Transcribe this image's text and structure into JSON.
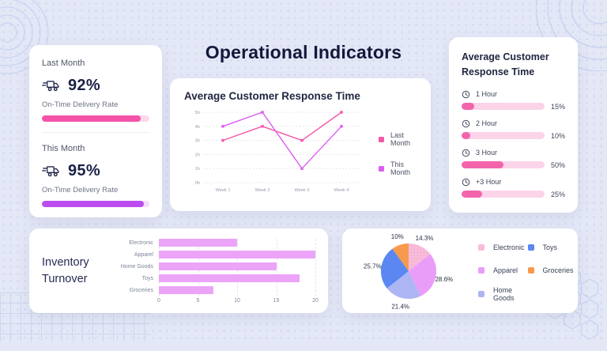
{
  "page_title": "Operational Indicators",
  "delivery_card": {
    "sections": [
      {
        "period": "Last Month",
        "value": "92%",
        "label": "On-Time Delivery Rate",
        "percent": 92,
        "fill": "#f553a8",
        "track": "#fbd9ec"
      },
      {
        "period": "This Month",
        "value": "95%",
        "label": "On-Time Delivery Rate",
        "percent": 95,
        "fill": "#bb4df0",
        "track": "#f3defb"
      }
    ]
  },
  "response_chart_card": {
    "title": "Average Customer Response Time"
  },
  "response_breakdown_card": {
    "title": "Average Customer Response Time",
    "bar_fill": "#f364ad",
    "bar_track": "#fbd4e9",
    "rows": [
      {
        "label": "1 Hour",
        "value": "15%",
        "percent": 15
      },
      {
        "label": "2 Hour",
        "value": "10%",
        "percent": 10
      },
      {
        "label": "3 Hour",
        "value": "50%",
        "percent": 50
      },
      {
        "label": "+3 Hour",
        "value": "25%",
        "percent": 25
      }
    ]
  },
  "inventory_card": {
    "title": "Inventory Turnover"
  },
  "chart_data": [
    {
      "type": "line",
      "title": "Average Customer Response Time",
      "x": [
        "Week 1",
        "Week 2",
        "Week 3",
        "Week 4"
      ],
      "yticks": [
        "0h",
        "1h",
        "2h",
        "3h",
        "4h",
        "5h"
      ],
      "ylim": [
        0,
        5
      ],
      "grid": "horizontal-dotted",
      "legend_position": "right",
      "series": [
        {
          "name": "Last Month",
          "values": [
            3,
            4,
            3,
            5
          ],
          "color": "#f558a7"
        },
        {
          "name": "This Month",
          "values": [
            4,
            5,
            1,
            4
          ],
          "color": "#dd5cf2"
        }
      ]
    },
    {
      "type": "bar",
      "title": "Inventory Turnover",
      "orientation": "horizontal",
      "categories": [
        "Electronic",
        "Apparel",
        "Home Goods",
        "Toys",
        "Groceries"
      ],
      "values": [
        10,
        20,
        15,
        18,
        7
      ],
      "xticks": [
        0,
        5,
        10,
        15,
        20
      ],
      "xlim": [
        0,
        20
      ],
      "color": "#eba4f8",
      "grid": "vertical-dashed"
    },
    {
      "type": "pie",
      "labels": [
        "Electronic",
        "Apparel",
        "Home Goods",
        "Toys",
        "Groceries"
      ],
      "values": [
        14.3,
        28.6,
        21.4,
        25.7,
        10
      ],
      "display_labels": [
        "14.3%",
        "28.6%",
        "21.4%",
        "25.7%",
        "10%"
      ],
      "colors": [
        "#f8bcd9",
        "#e99df8",
        "#adb6f3",
        "#5a87f2",
        "#f79a4d"
      ],
      "textured_slice": 0,
      "legend_position": "right",
      "legend_columns": 2
    }
  ]
}
